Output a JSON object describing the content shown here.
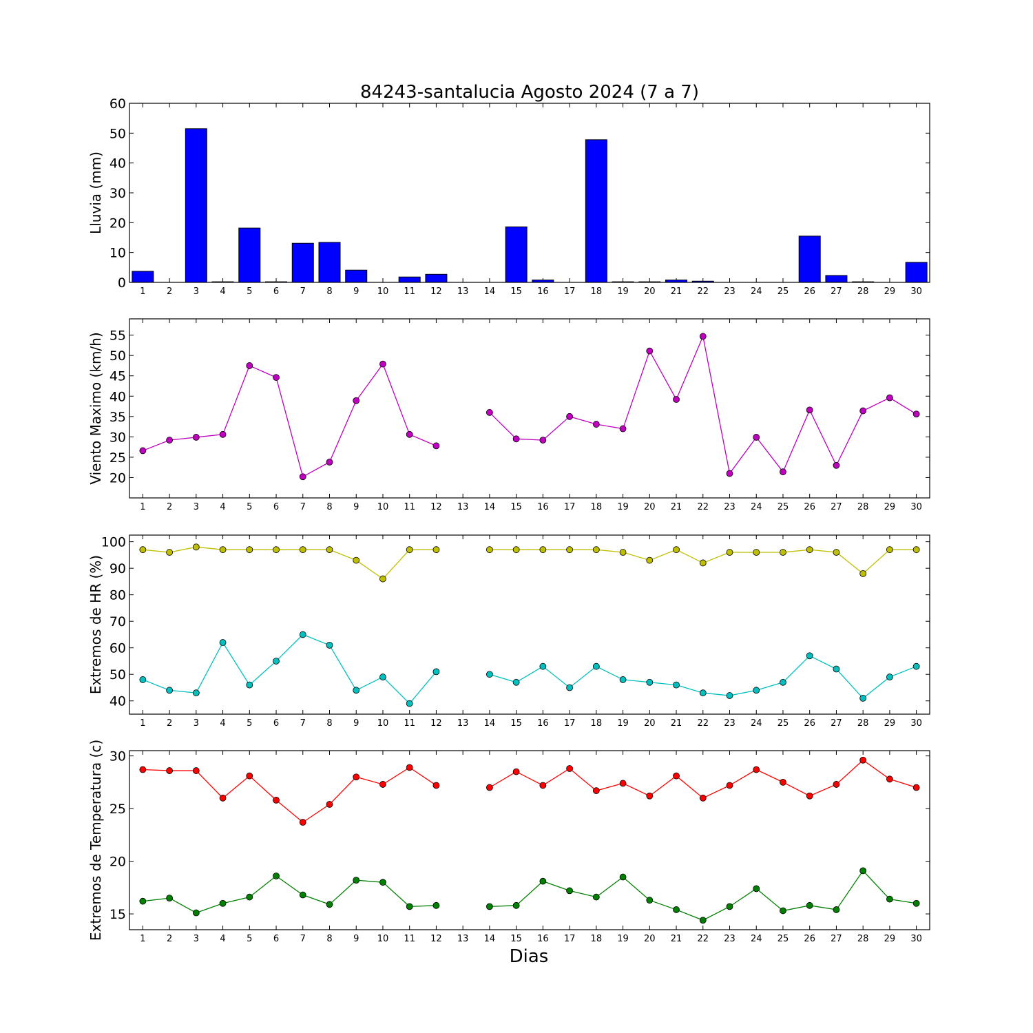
{
  "figure": {
    "title": "84243-santalucia Agosto 2024  (7 a 7)",
    "xlabel": "Dias"
  },
  "chart_data": [
    {
      "type": "bar",
      "ylabel": "Lluvia (mm)",
      "x": [
        1,
        2,
        3,
        4,
        5,
        6,
        7,
        8,
        9,
        10,
        11,
        12,
        13,
        14,
        15,
        16,
        17,
        18,
        19,
        20,
        21,
        22,
        23,
        24,
        25,
        26,
        27,
        28,
        29,
        30
      ],
      "values": [
        3.7,
        0,
        51.5,
        0.2,
        18.2,
        0.2,
        13.1,
        13.4,
        4.1,
        0,
        1.8,
        2.7,
        0,
        0,
        18.6,
        0.8,
        0,
        47.8,
        0.2,
        0.2,
        0.8,
        0.4,
        0,
        0,
        0,
        15.5,
        2.3,
        0.2,
        0,
        6.7
      ],
      "ylim": [
        0,
        60
      ],
      "yticks": [
        0,
        10,
        20,
        30,
        40,
        50,
        60
      ],
      "color": "#0000ff"
    },
    {
      "type": "line",
      "ylabel": "Viento Maximo (km/h)",
      "x": [
        1,
        2,
        3,
        4,
        5,
        6,
        7,
        8,
        9,
        10,
        11,
        12,
        13,
        14,
        15,
        16,
        17,
        18,
        19,
        20,
        21,
        22,
        23,
        24,
        25,
        26,
        27,
        28,
        29,
        30
      ],
      "series": [
        {
          "color": "#bf00bf",
          "values": [
            26.6,
            29.2,
            29.9,
            30.6,
            47.5,
            44.6,
            20.2,
            23.8,
            38.9,
            47.9,
            30.6,
            27.8,
            null,
            36.0,
            29.5,
            29.2,
            35.0,
            33.1,
            32.0,
            51.1,
            39.2,
            54.7,
            21.0,
            29.9,
            21.4,
            36.6,
            23.0,
            36.4,
            39.6,
            35.6
          ]
        }
      ],
      "ylim": [
        15,
        59
      ],
      "yticks": [
        20,
        25,
        30,
        35,
        40,
        45,
        50,
        55
      ]
    },
    {
      "type": "line",
      "ylabel": "Extremos de HR (%)",
      "x": [
        1,
        2,
        3,
        4,
        5,
        6,
        7,
        8,
        9,
        10,
        11,
        12,
        13,
        14,
        15,
        16,
        17,
        18,
        19,
        20,
        21,
        22,
        23,
        24,
        25,
        26,
        27,
        28,
        29,
        30
      ],
      "series": [
        {
          "color": "#bfbf00",
          "values": [
            97,
            96,
            98,
            97,
            97,
            97,
            97,
            97,
            93,
            86,
            97,
            97,
            null,
            97,
            97,
            97,
            97,
            97,
            96,
            93,
            97,
            92,
            96,
            96,
            96,
            97,
            96,
            88,
            97,
            97
          ]
        },
        {
          "color": "#00bfbf",
          "values": [
            48,
            44,
            43,
            62,
            46,
            55,
            65,
            61,
            44,
            49,
            39,
            51,
            null,
            50,
            47,
            53,
            45,
            53,
            48,
            47,
            46,
            43,
            42,
            44,
            47,
            57,
            52,
            41,
            49,
            53
          ]
        }
      ],
      "ylim": [
        35,
        102.5
      ],
      "yticks": [
        40,
        50,
        60,
        70,
        80,
        90,
        100
      ]
    },
    {
      "type": "line",
      "ylabel": "Extremos de Temperatura (c)",
      "x": [
        1,
        2,
        3,
        4,
        5,
        6,
        7,
        8,
        9,
        10,
        11,
        12,
        13,
        14,
        15,
        16,
        17,
        18,
        19,
        20,
        21,
        22,
        23,
        24,
        25,
        26,
        27,
        28,
        29,
        30
      ],
      "series": [
        {
          "color": "#ff0000",
          "values": [
            28.7,
            28.6,
            28.6,
            26.0,
            28.1,
            25.8,
            23.7,
            25.4,
            28.0,
            27.3,
            28.9,
            27.2,
            null,
            27.0,
            28.5,
            27.2,
            28.8,
            26.7,
            27.4,
            26.2,
            28.1,
            26.0,
            27.2,
            28.7,
            27.5,
            26.2,
            27.3,
            29.6,
            27.8,
            27.0
          ]
        },
        {
          "color": "#008000",
          "values": [
            16.2,
            16.5,
            15.1,
            16.0,
            16.6,
            18.6,
            16.8,
            15.9,
            18.2,
            18.0,
            15.7,
            15.8,
            null,
            15.7,
            15.8,
            18.1,
            17.2,
            16.6,
            18.5,
            16.3,
            15.4,
            14.4,
            15.7,
            17.4,
            15.3,
            15.8,
            15.4,
            19.1,
            16.4,
            16.0
          ]
        }
      ],
      "ylim": [
        13.5,
        30.5
      ],
      "yticks": [
        15,
        20,
        25,
        30
      ]
    }
  ]
}
